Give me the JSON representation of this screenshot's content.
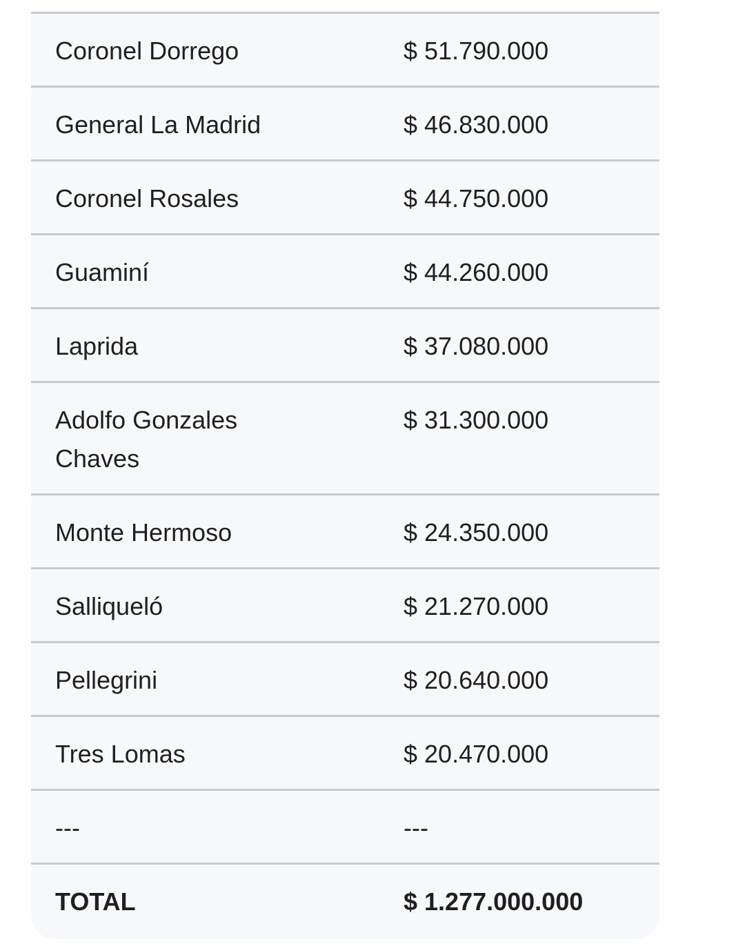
{
  "table": {
    "rows": [
      {
        "name": "Coronel Dorrego",
        "amount": "$ 51.790.000"
      },
      {
        "name": "General La Madrid",
        "amount": "$ 46.830.000"
      },
      {
        "name": "Coronel Rosales",
        "amount": "$ 44.750.000"
      },
      {
        "name": "Guaminí",
        "amount": "$ 44.260.000"
      },
      {
        "name": "Laprida",
        "amount": "$ 37.080.000"
      },
      {
        "name": "Adolfo Gonzales Chaves",
        "amount": "$ 31.300.000"
      },
      {
        "name": "Monte Hermoso",
        "amount": "$ 24.350.000"
      },
      {
        "name": "Salliqueló",
        "amount": "$ 21.270.000"
      },
      {
        "name": "Pellegrini",
        "amount": "$ 20.640.000"
      },
      {
        "name": "Tres Lomas",
        "amount": "$ 20.470.000"
      },
      {
        "name": "---",
        "amount": "---"
      }
    ],
    "total": {
      "label": "TOTAL",
      "amount": "$ 1.277.000.000"
    }
  }
}
